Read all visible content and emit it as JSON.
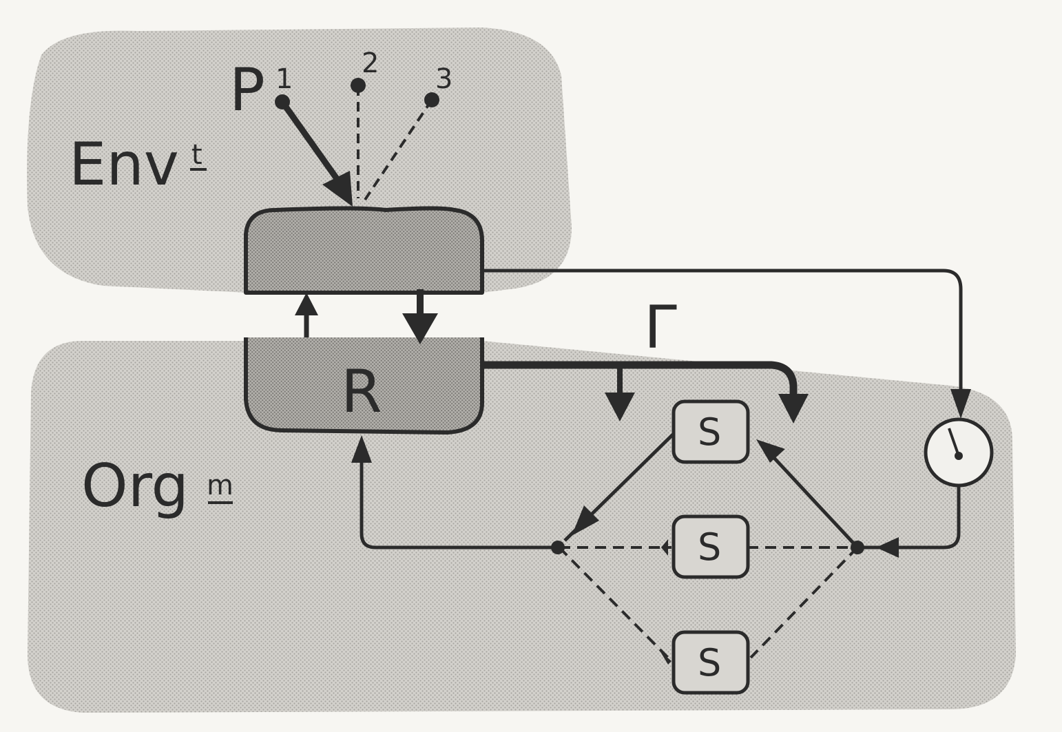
{
  "labels": {
    "p": "P",
    "p1": "1",
    "p2": "2",
    "p3": "3",
    "env_main": "Env",
    "env_sup": "t",
    "org_main": "Org",
    "org_sup": "m",
    "reagent": "R",
    "gamma": "Γ",
    "s1": "S",
    "s2": "S",
    "s3": "S"
  },
  "colors": {
    "background": "#f7f6f2",
    "region_fill": "#cfcdc8",
    "box_fill": "#a9a7a2",
    "ink": "#2b2b2b"
  }
}
